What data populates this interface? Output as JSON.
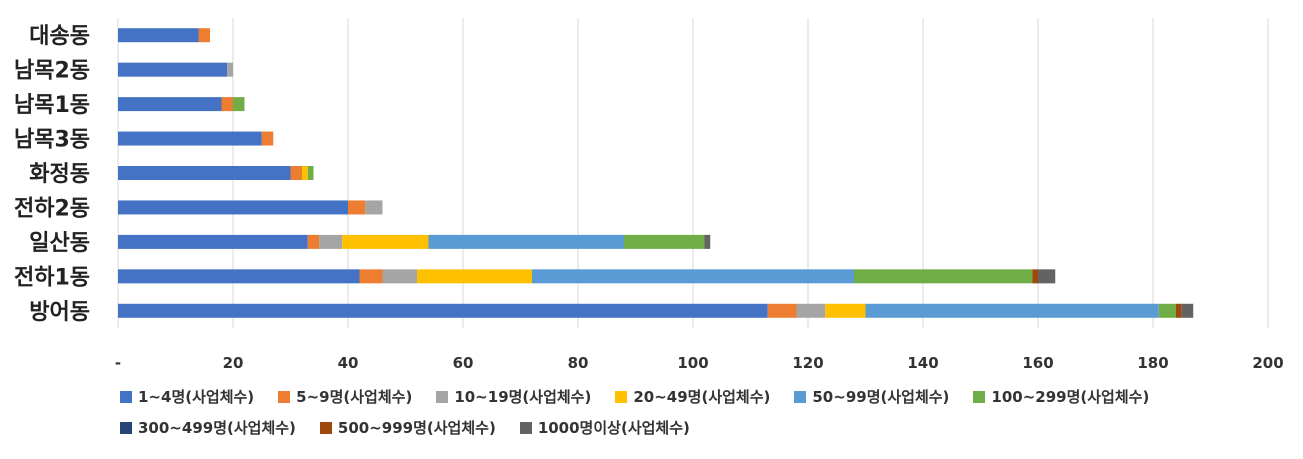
{
  "chart_data": {
    "type": "bar",
    "orientation": "horizontal",
    "stacked": true,
    "categories": [
      "대송동",
      "남목2동",
      "남목1동",
      "남목3동",
      "화정동",
      "전하2동",
      "일산동",
      "전하1동",
      "방어동"
    ],
    "series": [
      {
        "name": "1~4명(사업체수)",
        "color": "#4472C4",
        "values": [
          14,
          19,
          18,
          25,
          30,
          40,
          33,
          42,
          113
        ]
      },
      {
        "name": "5~9명(사업체수)",
        "color": "#ED7D31",
        "values": [
          2,
          0,
          2,
          2,
          2,
          3,
          2,
          4,
          5
        ]
      },
      {
        "name": "10~19명(사업체수)",
        "color": "#A5A5A5",
        "values": [
          0,
          1,
          0,
          0,
          0,
          3,
          4,
          6,
          5
        ]
      },
      {
        "name": "20~49명(사업체수)",
        "color": "#FFC000",
        "values": [
          0,
          0,
          0,
          0,
          1,
          0,
          15,
          20,
          7
        ]
      },
      {
        "name": "50~99명(사업체수)",
        "color": "#5B9BD5",
        "values": [
          0,
          0,
          0,
          0,
          0,
          0,
          34,
          56,
          51
        ]
      },
      {
        "name": "100~299명(사업체수)",
        "color": "#70AD47",
        "values": [
          0,
          0,
          2,
          0,
          1,
          0,
          14,
          31,
          3
        ]
      },
      {
        "name": "300~499명(사업체수)",
        "color": "#264478",
        "values": [
          0,
          0,
          0,
          0,
          0,
          0,
          0,
          0,
          0
        ]
      },
      {
        "name": "500~999명(사업체수)",
        "color": "#9E480E",
        "values": [
          0,
          0,
          0,
          0,
          0,
          0,
          0,
          1,
          1
        ]
      },
      {
        "name": "1000명이상(사업체수)",
        "color": "#636363",
        "values": [
          0,
          0,
          0,
          0,
          0,
          0,
          1,
          3,
          2
        ]
      }
    ],
    "x_ticks": [
      "-",
      "20",
      "40",
      "60",
      "80",
      "100",
      "120",
      "140",
      "160",
      "180",
      "200"
    ],
    "xlim": [
      0,
      200
    ],
    "grid": true,
    "legend_position": "bottom"
  }
}
